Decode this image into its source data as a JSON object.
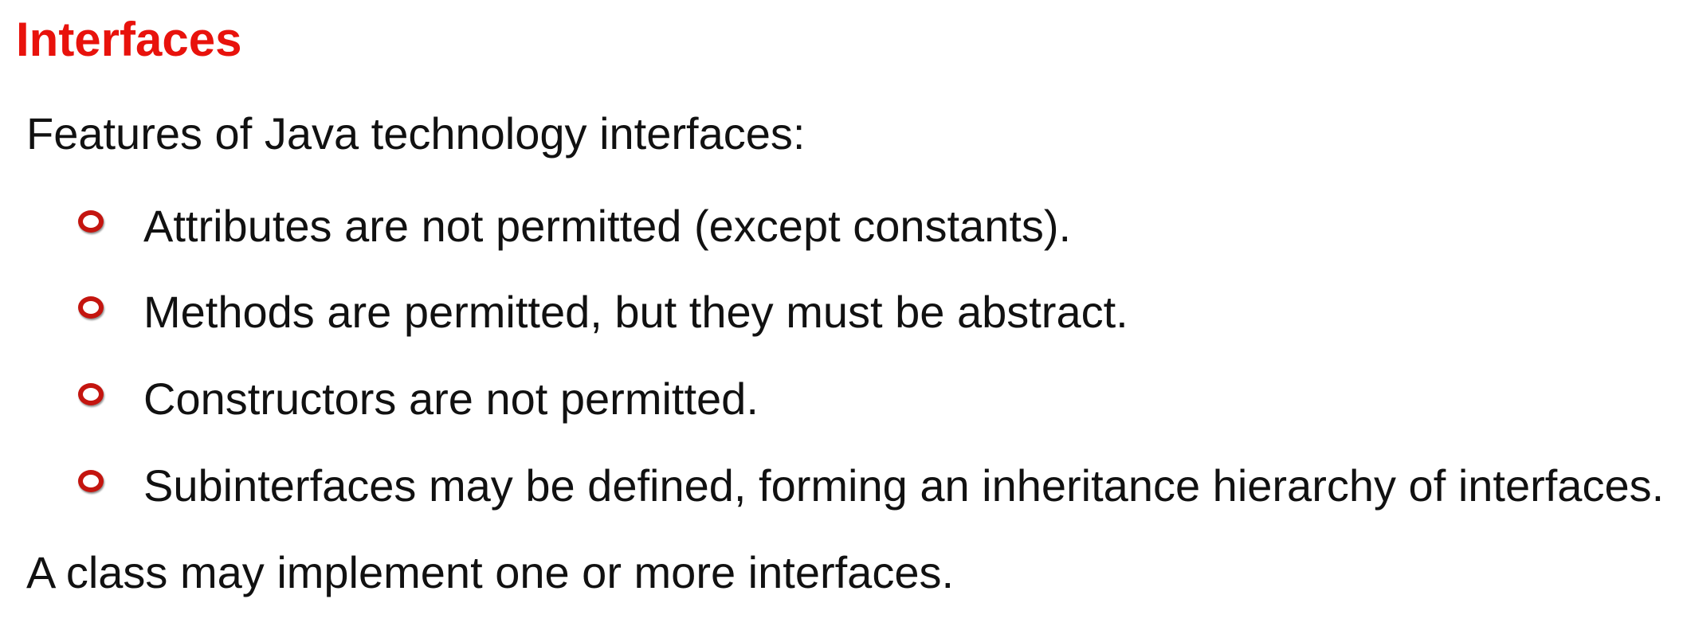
{
  "slide": {
    "title": "Interfaces",
    "intro": "Features of Java technology interfaces:",
    "bullets": [
      "Attributes are not permitted (except constants).",
      "Methods are permitted, but they must be abstract.",
      "Constructors are not permitted.",
      "Subinterfaces may be defined, forming an inheritance hierarchy of interfaces."
    ],
    "outro": "A class may implement one or more interfaces."
  },
  "colors": {
    "title": "#e8120c",
    "bullet": "#c4150f",
    "text": "#111111",
    "background": "#ffffff"
  },
  "icons": {
    "bullet": "hollow-circle-bullet-icon"
  }
}
